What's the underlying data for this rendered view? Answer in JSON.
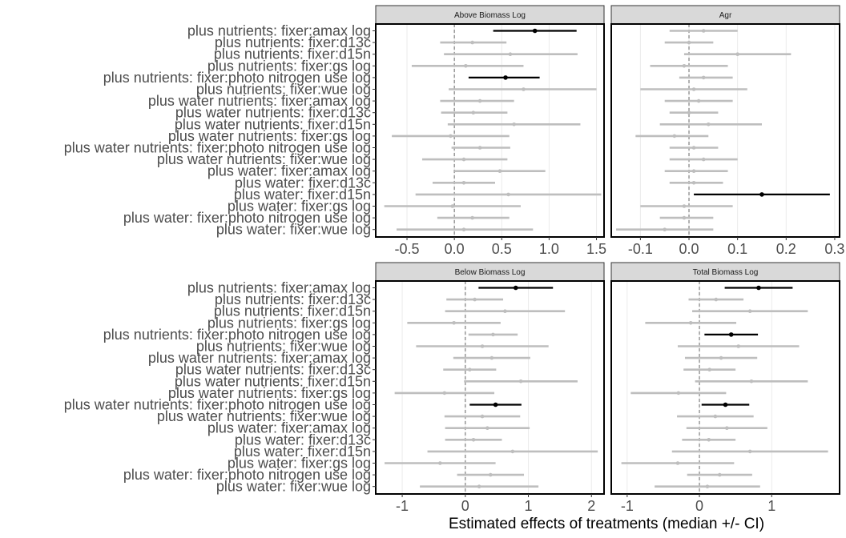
{
  "chart_data": {
    "type": "forest",
    "xlabel": "Estimated effects of treatments (median +/- CI)",
    "ylabel": "",
    "colors": {
      "significant": "#000000",
      "nonsignificant": "#bebebe",
      "zero_line": "#7f7f7f",
      "strip": "#d9d9d9"
    },
    "labels": [
      "plus nutrients: fixer:amax log",
      "plus nutrients: fixer:d13c",
      "plus nutrients: fixer:d15n",
      "plus nutrients: fixer:gs log",
      "plus nutrients: fixer:photo nitrogen use log",
      "plus nutrients: fixer:wue log",
      "plus water nutrients: fixer:amax log",
      "plus water nutrients: fixer:d13c",
      "plus water nutrients: fixer:d15n",
      "plus water nutrients: fixer:gs log",
      "plus water nutrients: fixer:photo nitrogen use log",
      "plus water nutrients: fixer:wue log",
      "plus water: fixer:amax log",
      "plus water: fixer:d13c",
      "plus water: fixer:d15n",
      "plus water: fixer:gs log",
      "plus water: fixer:photo nitrogen use log",
      "plus water: fixer:wue log"
    ],
    "panels": [
      {
        "title": "Above Biomass Log",
        "xlim": [
          -0.83,
          1.58
        ],
        "ticks": [
          -0.5,
          0.0,
          0.5,
          1.0,
          1.5
        ],
        "tick_labels": [
          "-0.5",
          "0.0",
          "0.5",
          "1.0",
          "1.5"
        ],
        "median": [
          0.85,
          0.19,
          0.59,
          0.12,
          0.54,
          0.73,
          0.27,
          0.2,
          0.63,
          -0.04,
          0.27,
          0.1,
          0.48,
          0.1,
          0.57,
          -0.02,
          0.19,
          0.1
        ],
        "lower": [
          0.41,
          -0.15,
          -0.11,
          -0.45,
          0.15,
          -0.06,
          -0.15,
          -0.14,
          -0.07,
          -0.66,
          -0.03,
          -0.34,
          0.0,
          -0.23,
          -0.41,
          -0.74,
          -0.18,
          -0.61
        ],
        "upper": [
          1.29,
          0.55,
          1.3,
          0.73,
          0.9,
          1.5,
          0.63,
          0.56,
          1.33,
          0.58,
          0.59,
          0.56,
          0.96,
          0.43,
          1.55,
          0.7,
          0.58,
          0.83
        ],
        "significant": [
          true,
          false,
          false,
          false,
          true,
          false,
          false,
          false,
          false,
          false,
          false,
          false,
          false,
          false,
          false,
          false,
          false,
          false
        ]
      },
      {
        "title": "Agr",
        "xlim": [
          -0.16,
          0.31
        ],
        "ticks": [
          -0.1,
          0.0,
          0.1,
          0.2,
          0.3
        ],
        "tick_labels": [
          "-0.1",
          "0.0",
          "0.1",
          "0.2",
          "0.3"
        ],
        "median": [
          0.03,
          0.0,
          0.1,
          -0.01,
          0.03,
          0.01,
          0.02,
          0.0,
          0.04,
          -0.03,
          0.01,
          0.03,
          0.01,
          0.01,
          0.15,
          -0.01,
          -0.01,
          -0.05
        ],
        "lower": [
          -0.04,
          -0.05,
          -0.01,
          -0.08,
          -0.02,
          -0.1,
          -0.05,
          -0.04,
          -0.06,
          -0.11,
          -0.04,
          -0.04,
          -0.05,
          -0.04,
          0.01,
          -0.1,
          -0.06,
          -0.15
        ],
        "upper": [
          0.1,
          0.05,
          0.21,
          0.08,
          0.09,
          0.12,
          0.09,
          0.06,
          0.15,
          0.04,
          0.06,
          0.1,
          0.08,
          0.07,
          0.29,
          0.09,
          0.05,
          0.05
        ],
        "significant": [
          false,
          false,
          false,
          false,
          false,
          false,
          false,
          false,
          false,
          false,
          false,
          false,
          false,
          false,
          true,
          false,
          false,
          false
        ]
      },
      {
        "title": "Below Biomass Log",
        "xlim": [
          -1.42,
          2.2
        ],
        "ticks": [
          -1,
          0,
          1,
          2
        ],
        "tick_labels": [
          "-1",
          "0",
          "1",
          "2"
        ],
        "median": [
          0.8,
          0.15,
          0.63,
          -0.18,
          0.44,
          0.27,
          0.42,
          0.07,
          0.88,
          -0.33,
          0.48,
          0.27,
          0.35,
          0.13,
          0.75,
          -0.4,
          0.4,
          0.22
        ],
        "lower": [
          0.21,
          -0.3,
          -0.32,
          -0.92,
          0.05,
          -0.78,
          -0.19,
          -0.35,
          -0.02,
          -1.12,
          0.07,
          -0.33,
          -0.32,
          -0.32,
          -0.6,
          -1.28,
          -0.13,
          -0.72
        ],
        "upper": [
          1.39,
          0.6,
          1.58,
          0.56,
          0.83,
          1.32,
          1.03,
          0.49,
          1.78,
          0.46,
          0.89,
          0.87,
          1.02,
          0.58,
          2.1,
          0.48,
          0.93,
          1.16
        ],
        "significant": [
          true,
          false,
          false,
          false,
          false,
          false,
          false,
          false,
          false,
          false,
          true,
          false,
          false,
          false,
          false,
          false,
          false,
          false
        ]
      },
      {
        "title": "Total Biomass Log",
        "xlim": [
          -1.22,
          1.94
        ],
        "ticks": [
          -1,
          0,
          1
        ],
        "tick_labels": [
          "-1",
          "0",
          "1"
        ],
        "median": [
          0.82,
          0.23,
          0.7,
          -0.12,
          0.44,
          0.54,
          0.3,
          0.14,
          0.72,
          -0.29,
          0.36,
          0.22,
          0.38,
          0.13,
          0.7,
          -0.3,
          0.28,
          0.11
        ],
        "lower": [
          0.35,
          -0.15,
          -0.1,
          -0.75,
          0.07,
          -0.3,
          -0.2,
          -0.22,
          -0.06,
          -0.95,
          0.03,
          -0.31,
          -0.18,
          -0.24,
          -0.38,
          -1.08,
          -0.17,
          -0.62
        ],
        "upper": [
          1.29,
          0.61,
          1.5,
          0.51,
          0.81,
          1.38,
          0.8,
          0.5,
          1.5,
          0.37,
          0.69,
          0.75,
          0.94,
          0.5,
          1.78,
          0.48,
          0.73,
          0.84
        ],
        "significant": [
          true,
          false,
          false,
          false,
          true,
          false,
          false,
          false,
          false,
          false,
          true,
          false,
          false,
          false,
          false,
          false,
          false,
          false
        ]
      }
    ]
  }
}
